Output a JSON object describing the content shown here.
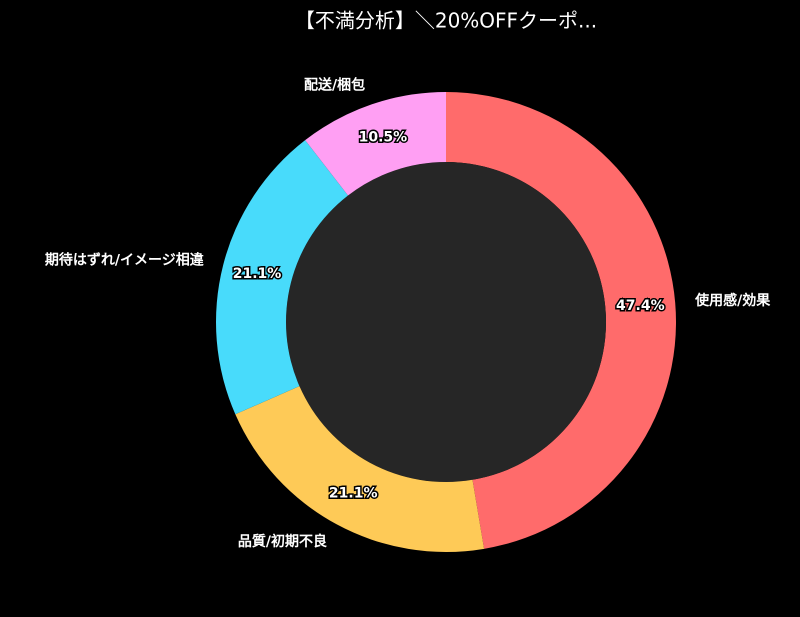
{
  "chart_data": {
    "type": "donut",
    "title": "【不満分析】＼20%OFFクーポ...",
    "categories": [
      "使用感/効果",
      "品質/初期不良",
      "期待はずれ/イメージ相違",
      "配送/梱包"
    ],
    "values": [
      47.4,
      21.1,
      21.1,
      10.5
    ],
    "value_labels": [
      "47.4%",
      "21.1%",
      "21.1%",
      "10.5%"
    ],
    "colors": [
      "#ff6b6b",
      "#feca57",
      "#48dbfb",
      "#ff9ff3"
    ]
  }
}
